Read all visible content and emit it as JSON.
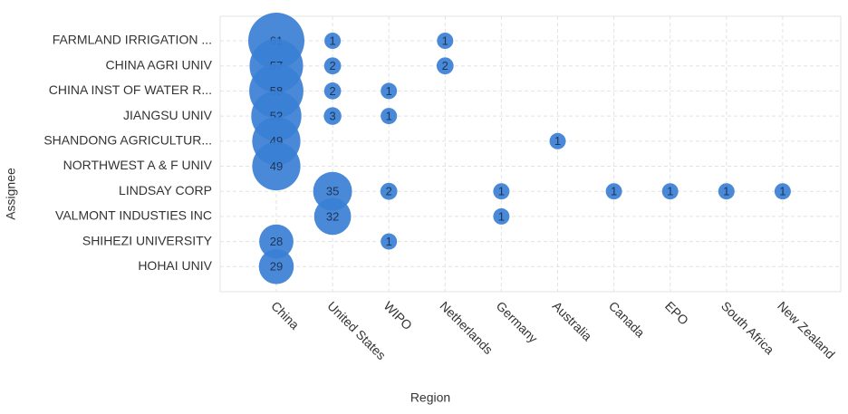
{
  "chart_data": {
    "type": "bubble",
    "xlabel": "Region",
    "ylabel": "Assignee",
    "color": "#3a7fd5",
    "grid": true,
    "x_categories": [
      "China",
      "United States",
      "WIPO",
      "Netherlands",
      "Germany",
      "Australia",
      "Canada",
      "EPO",
      "South Africa",
      "New Zealand"
    ],
    "y_categories": [
      "FARMLAND IRRIGATION ...",
      "CHINA AGRI UNIV",
      "CHINA INST OF WATER R...",
      "JIANGSU UNIV",
      "SHANDONG AGRICULTUR...",
      "NORTHWEST A & F UNIV",
      "LINDSAY CORP",
      "VALMONT INDUSTIES INC",
      "SHIHEZI UNIVERSITY",
      "HOHAI UNIV"
    ],
    "values": [
      [
        61,
        1,
        null,
        1,
        null,
        null,
        null,
        null,
        null,
        null
      ],
      [
        57,
        2,
        null,
        2,
        null,
        null,
        null,
        null,
        null,
        null
      ],
      [
        58,
        2,
        1,
        null,
        null,
        null,
        null,
        null,
        null,
        null
      ],
      [
        52,
        3,
        1,
        null,
        null,
        null,
        null,
        null,
        null,
        null
      ],
      [
        49,
        null,
        null,
        null,
        null,
        1,
        null,
        null,
        null,
        null
      ],
      [
        49,
        null,
        null,
        null,
        null,
        null,
        null,
        null,
        null,
        null
      ],
      [
        null,
        35,
        2,
        null,
        1,
        null,
        1,
        1,
        1,
        1
      ],
      [
        null,
        32,
        null,
        null,
        1,
        null,
        null,
        null,
        null,
        null
      ],
      [
        28,
        null,
        1,
        null,
        null,
        null,
        null,
        null,
        null,
        null
      ],
      [
        29,
        null,
        null,
        null,
        null,
        null,
        null,
        null,
        null,
        null
      ]
    ]
  }
}
